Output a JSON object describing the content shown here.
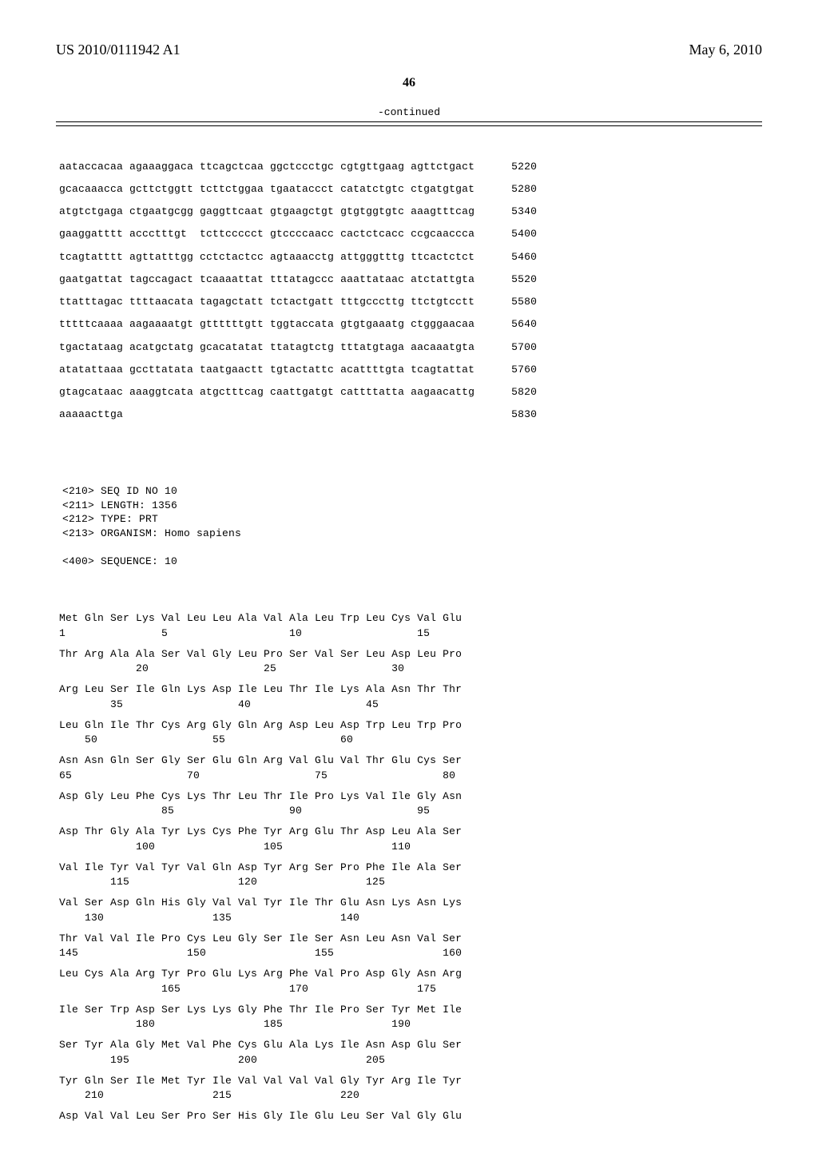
{
  "header": {
    "pub_number": "US 2010/0111942 A1",
    "pub_date": "May 6, 2010",
    "page_number": "46",
    "continued_label": "-continued"
  },
  "nucleotide": {
    "rows": [
      {
        "groups": [
          "aataccacaa",
          "agaaaggaca",
          "ttcagctcaa",
          "ggctccctgc",
          "cgtgttgaag",
          "agttctgact"
        ],
        "pos": "5220"
      },
      {
        "groups": [
          "gcacaaacca",
          "gcttctggtt",
          "tcttctggaa",
          "tgaataccct",
          "catatctgtc",
          "ctgatgtgat"
        ],
        "pos": "5280"
      },
      {
        "groups": [
          "atgtctgaga",
          "ctgaatgcgg",
          "gaggttcaat",
          "gtgaagctgt",
          "gtgtggtgtc",
          "aaagtttcag"
        ],
        "pos": "5340"
      },
      {
        "groups": [
          "gaaggatttt",
          "accctttgt",
          "tcttccccct",
          "gtccccaacc",
          "cactctcacc",
          "ccgcaaccca"
        ],
        "pos": "5400"
      },
      {
        "groups": [
          "tcagtatttt",
          "agttatttgg",
          "cctctactcc",
          "agtaaacctg",
          "attgggtttg",
          "ttcactctct"
        ],
        "pos": "5460"
      },
      {
        "groups": [
          "gaatgattat",
          "tagccagact",
          "tcaaaattat",
          "tttatagccc",
          "aaattataac",
          "atctattgta"
        ],
        "pos": "5520"
      },
      {
        "groups": [
          "ttatttagac",
          "ttttaacata",
          "tagagctatt",
          "tctactgatt",
          "tttgcccttg",
          "ttctgtcctt"
        ],
        "pos": "5580"
      },
      {
        "groups": [
          "tttttcaaaa",
          "aagaaaatgt",
          "gttttttgtt",
          "tggtaccata",
          "gtgtgaaatg",
          "ctgggaacaa"
        ],
        "pos": "5640"
      },
      {
        "groups": [
          "tgactataag",
          "acatgctatg",
          "gcacatatat",
          "ttatagtctg",
          "tttatgtaga",
          "aacaaatgta"
        ],
        "pos": "5700"
      },
      {
        "groups": [
          "atatattaaa",
          "gccttatata",
          "taatgaactt",
          "tgtactattc",
          "acattttgta",
          "tcagtattat"
        ],
        "pos": "5760"
      },
      {
        "groups": [
          "gtagcataac",
          "aaaggtcata",
          "atgctttcag",
          "caattgatgt",
          "cattttatta",
          "aagaacattg"
        ],
        "pos": "5820"
      },
      {
        "groups": [
          "aaaaacttga",
          "",
          "",
          "",
          "",
          ""
        ],
        "pos": "5830"
      }
    ]
  },
  "seq_header": {
    "lines": [
      "<210> SEQ ID NO 10",
      "<211> LENGTH: 1356",
      "<212> TYPE: PRT",
      "<213> ORGANISM: Homo sapiens",
      "",
      "<400> SEQUENCE: 10"
    ]
  },
  "protein": {
    "rows": [
      {
        "aa": "Met Gln Ser Lys Val Leu Leu Ala Val Ala Leu Trp Leu Cys Val Glu",
        "pos": "1               5                   10                  15"
      },
      {
        "aa": "Thr Arg Ala Ala Ser Val Gly Leu Pro Ser Val Ser Leu Asp Leu Pro",
        "pos": "            20                  25                  30"
      },
      {
        "aa": "Arg Leu Ser Ile Gln Lys Asp Ile Leu Thr Ile Lys Ala Asn Thr Thr",
        "pos": "        35                  40                  45"
      },
      {
        "aa": "Leu Gln Ile Thr Cys Arg Gly Gln Arg Asp Leu Asp Trp Leu Trp Pro",
        "pos": "    50                  55                  60"
      },
      {
        "aa": "Asn Asn Gln Ser Gly Ser Glu Gln Arg Val Glu Val Thr Glu Cys Ser",
        "pos": "65                  70                  75                  80"
      },
      {
        "aa": "Asp Gly Leu Phe Cys Lys Thr Leu Thr Ile Pro Lys Val Ile Gly Asn",
        "pos": "                85                  90                  95"
      },
      {
        "aa": "Asp Thr Gly Ala Tyr Lys Cys Phe Tyr Arg Glu Thr Asp Leu Ala Ser",
        "pos": "            100                 105                 110"
      },
      {
        "aa": "Val Ile Tyr Val Tyr Val Gln Asp Tyr Arg Ser Pro Phe Ile Ala Ser",
        "pos": "        115                 120                 125"
      },
      {
        "aa": "Val Ser Asp Gln His Gly Val Val Tyr Ile Thr Glu Asn Lys Asn Lys",
        "pos": "    130                 135                 140"
      },
      {
        "aa": "Thr Val Val Ile Pro Cys Leu Gly Ser Ile Ser Asn Leu Asn Val Ser",
        "pos": "145                 150                 155                 160"
      },
      {
        "aa": "Leu Cys Ala Arg Tyr Pro Glu Lys Arg Phe Val Pro Asp Gly Asn Arg",
        "pos": "                165                 170                 175"
      },
      {
        "aa": "Ile Ser Trp Asp Ser Lys Lys Gly Phe Thr Ile Pro Ser Tyr Met Ile",
        "pos": "            180                 185                 190"
      },
      {
        "aa": "Ser Tyr Ala Gly Met Val Phe Cys Glu Ala Lys Ile Asn Asp Glu Ser",
        "pos": "        195                 200                 205"
      },
      {
        "aa": "Tyr Gln Ser Ile Met Tyr Ile Val Val Val Val Gly Tyr Arg Ile Tyr",
        "pos": "    210                 215                 220"
      },
      {
        "aa": "Asp Val Val Leu Ser Pro Ser His Gly Ile Glu Leu Ser Val Gly Glu",
        "pos": ""
      }
    ]
  }
}
